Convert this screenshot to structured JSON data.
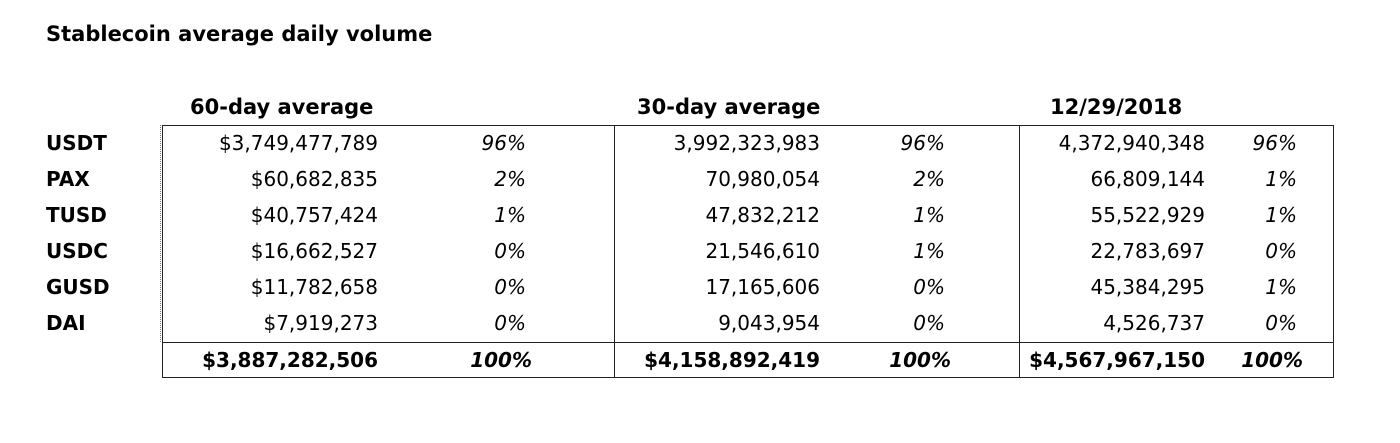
{
  "chart_data": {
    "type": "table",
    "title": "Stablecoin average daily volume",
    "column_groups": [
      "60-day average",
      "30-day average",
      "12/29/2018"
    ],
    "rows": [
      {
        "label": "USDT",
        "cells": [
          {
            "value": "$3,749,477,789",
            "pct": "96%"
          },
          {
            "value": "3,992,323,983",
            "pct": "96%"
          },
          {
            "value": "4,372,940,348",
            "pct": "96%"
          }
        ]
      },
      {
        "label": "PAX",
        "cells": [
          {
            "value": "$60,682,835",
            "pct": "2%"
          },
          {
            "value": "70,980,054",
            "pct": "2%"
          },
          {
            "value": "66,809,144",
            "pct": "1%"
          }
        ]
      },
      {
        "label": "TUSD",
        "cells": [
          {
            "value": "$40,757,424",
            "pct": "1%"
          },
          {
            "value": "47,832,212",
            "pct": "1%"
          },
          {
            "value": "55,522,929",
            "pct": "1%"
          }
        ]
      },
      {
        "label": "USDC",
        "cells": [
          {
            "value": "$16,662,527",
            "pct": "0%"
          },
          {
            "value": "21,546,610",
            "pct": "1%"
          },
          {
            "value": "22,783,697",
            "pct": "0%"
          }
        ]
      },
      {
        "label": "GUSD",
        "cells": [
          {
            "value": "$11,782,658",
            "pct": "0%"
          },
          {
            "value": "17,165,606",
            "pct": "0%"
          },
          {
            "value": "45,384,295",
            "pct": "1%"
          }
        ]
      },
      {
        "label": "DAI",
        "cells": [
          {
            "value": "$7,919,273",
            "pct": "0%"
          },
          {
            "value": "9,043,954",
            "pct": "0%"
          },
          {
            "value": "4,526,737",
            "pct": "0%"
          }
        ]
      }
    ],
    "totals": [
      {
        "value": "$3,887,282,506",
        "pct": "100%"
      },
      {
        "value": "$4,158,892,419",
        "pct": "100%"
      },
      {
        "value": "$4,567,967,150",
        "pct": "100%"
      }
    ]
  }
}
